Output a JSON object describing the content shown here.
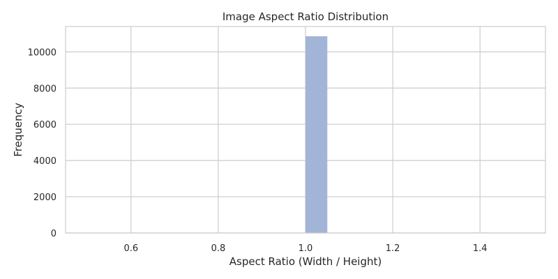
{
  "chart_data": {
    "type": "bar",
    "title": "Image Aspect Ratio Distribution",
    "xlabel": "Aspect Ratio (Width / Height)",
    "ylabel": "Frequency",
    "xlim": [
      0.45,
      1.55
    ],
    "ylim": [
      0,
      11400
    ],
    "xticks": [
      0.6,
      0.8,
      1.0,
      1.2,
      1.4
    ],
    "xtick_labels": [
      "0.6",
      "0.8",
      "1.0",
      "1.2",
      "1.4"
    ],
    "yticks": [
      0,
      2000,
      4000,
      6000,
      8000,
      10000
    ],
    "ytick_labels": [
      "0",
      "2000",
      "4000",
      "6000",
      "8000",
      "10000"
    ],
    "grid": true,
    "bins": [
      {
        "x0": 1.0,
        "x1": 1.05,
        "value": 10860
      }
    ],
    "colors": {
      "bar": "#a3b5d7",
      "grid": "#cccccc",
      "text": "#262626"
    }
  }
}
